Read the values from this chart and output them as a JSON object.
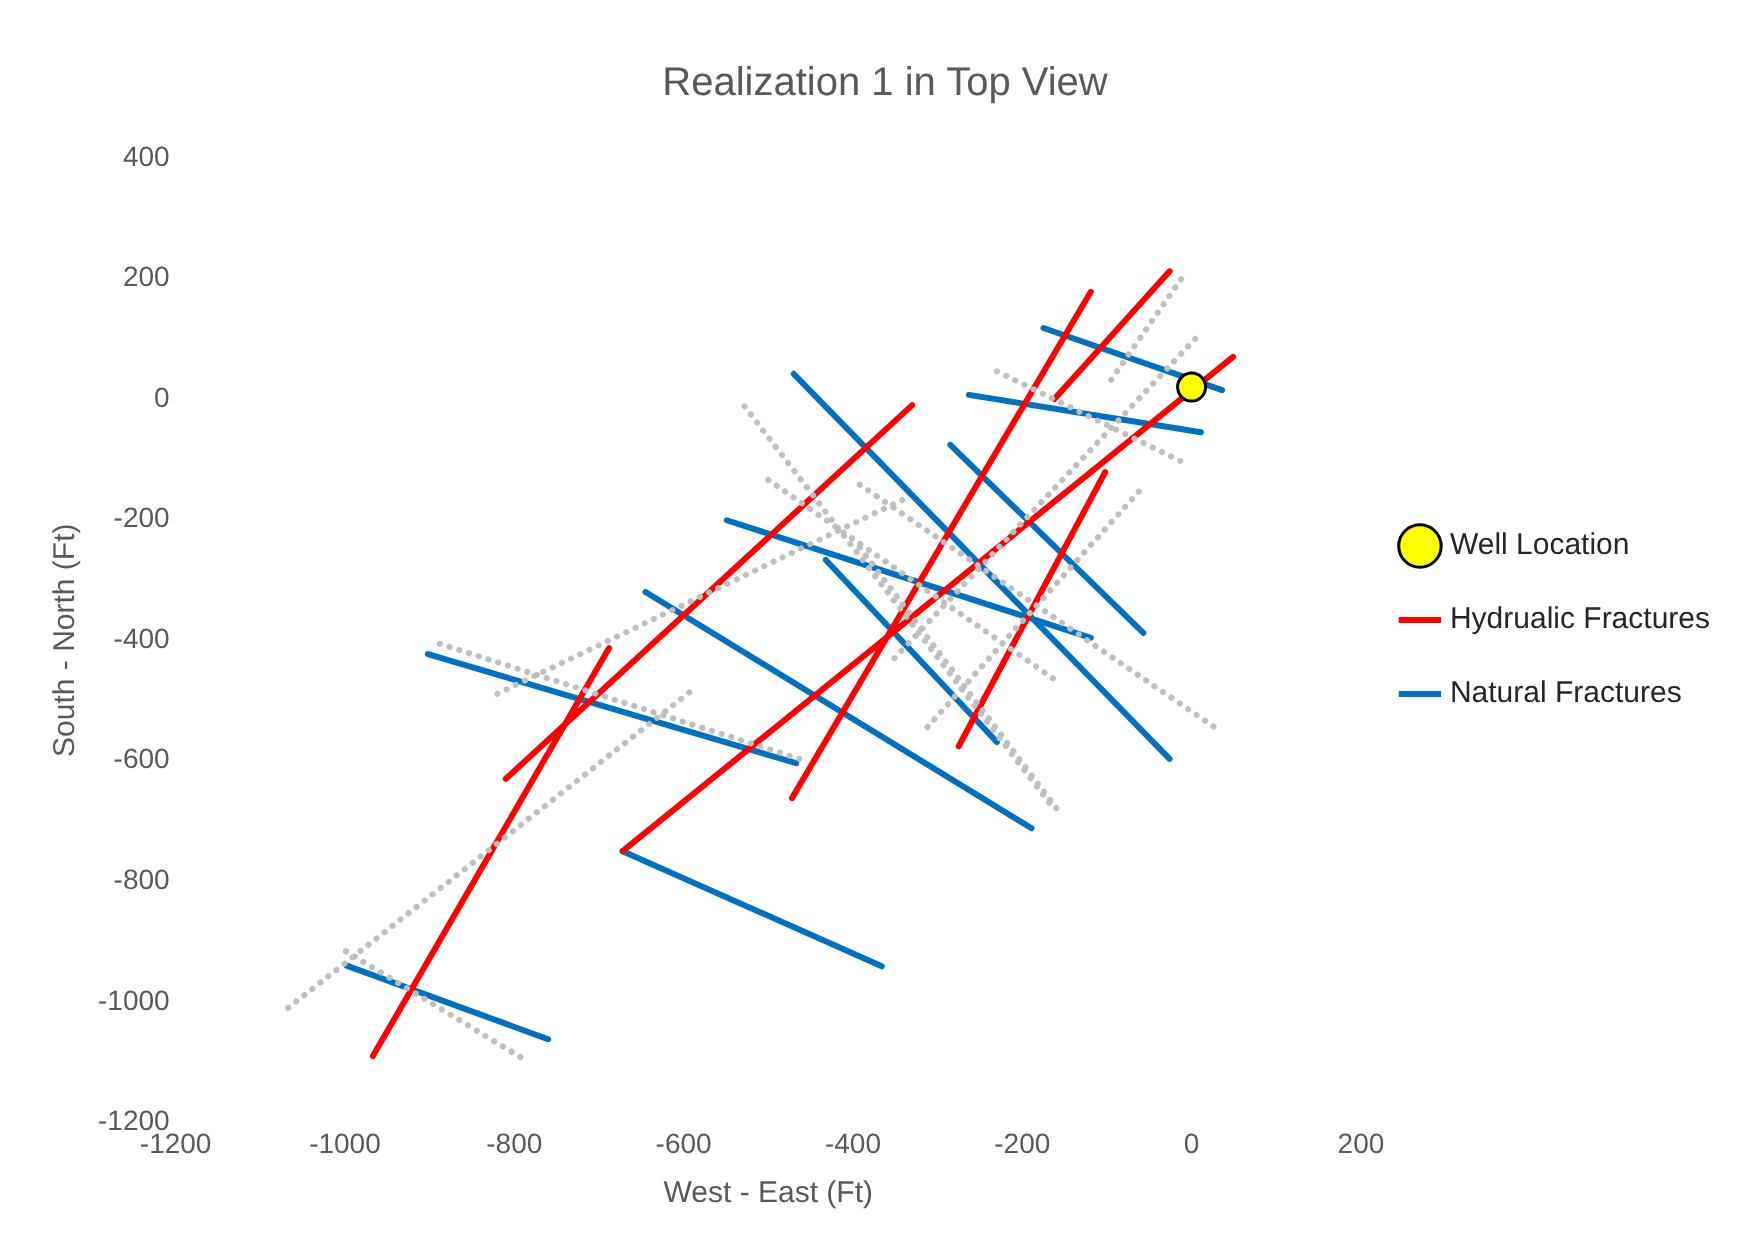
{
  "chart_data": {
    "type": "line",
    "title": "Realization 1 in Top View",
    "xlabel": "West - East (Ft)",
    "ylabel": "South - North (Ft)",
    "xlim": [
      -1200,
      200
    ],
    "xticks": [
      -1200,
      -1000,
      -800,
      -600,
      -400,
      -200,
      0,
      200
    ],
    "ylim": [
      -1200,
      400
    ],
    "yticks": [
      -1200,
      -1000,
      -800,
      -600,
      -400,
      -200,
      0,
      200,
      400
    ],
    "grid": false,
    "legend": "right",
    "series": [
      {
        "color": "#bfbfbf",
        "line_style": "dotted",
        "x": [
          -1067,
          -589,
          null,
          -999,
          -783,
          null,
          -888,
          -463,
          null,
          -820,
          -335,
          null,
          -528,
          -163,
          null,
          -500,
          -163,
          null,
          -312,
          -55,
          null,
          -392,
          35,
          null,
          -392,
          -159,
          null,
          -351,
          5,
          null,
          -95,
          -11,
          null,
          -230,
          -7
        ],
        "values": [
          -1010,
          -482,
          null,
          -916,
          -1100,
          null,
          -406,
          -597,
          null,
          -489,
          -163,
          null,
          -12,
          -679,
          null,
          -134,
          -464,
          null,
          -544,
          -142,
          null,
          -142,
          -552,
          null,
          -246,
          -680,
          null,
          -430,
          101,
          null,
          32,
          202,
          null,
          46,
          -107
        ]
      },
      {
        "type": "scatter",
        "name": "Well Location",
        "color": "#ffff00",
        "marker": "circle",
        "x": [
          0
        ],
        "values": [
          20
        ]
      },
      {
        "name": "Hydrualic Fractures",
        "color": "#ff0000",
        "line_style": "solid",
        "x": [
          -967,
          -688,
          null,
          -810,
          -330,
          null,
          -472,
          -119,
          null,
          -672,
          49,
          null,
          -275,
          -102,
          null,
          -162,
          -26
        ],
        "values": [
          -1090,
          -413,
          null,
          -630,
          -10,
          null,
          -662,
          178,
          null,
          -750,
          70,
          null,
          -576,
          -121,
          null,
          0,
          212
        ]
      },
      {
        "name": "Natural Fractures",
        "color": "#0070c0",
        "line_style": "solid",
        "x": [
          -998,
          -760,
          null,
          -672,
          -366,
          null,
          -902,
          -467,
          null,
          -645,
          -189,
          null,
          -549,
          -119,
          null,
          -470,
          -26,
          null,
          -432,
          -230,
          null,
          -285,
          -57,
          null,
          -263,
          11,
          null,
          -175,
          36
        ],
        "values": [
          -940,
          -1062,
          null,
          -750,
          -941,
          null,
          -423,
          -604,
          null,
          -320,
          -712,
          null,
          -201,
          -396,
          null,
          42,
          -597,
          null,
          -267,
          -569,
          null,
          -76,
          -388,
          null,
          7,
          -55,
          null,
          118,
          15
        ]
      }
    ]
  }
}
